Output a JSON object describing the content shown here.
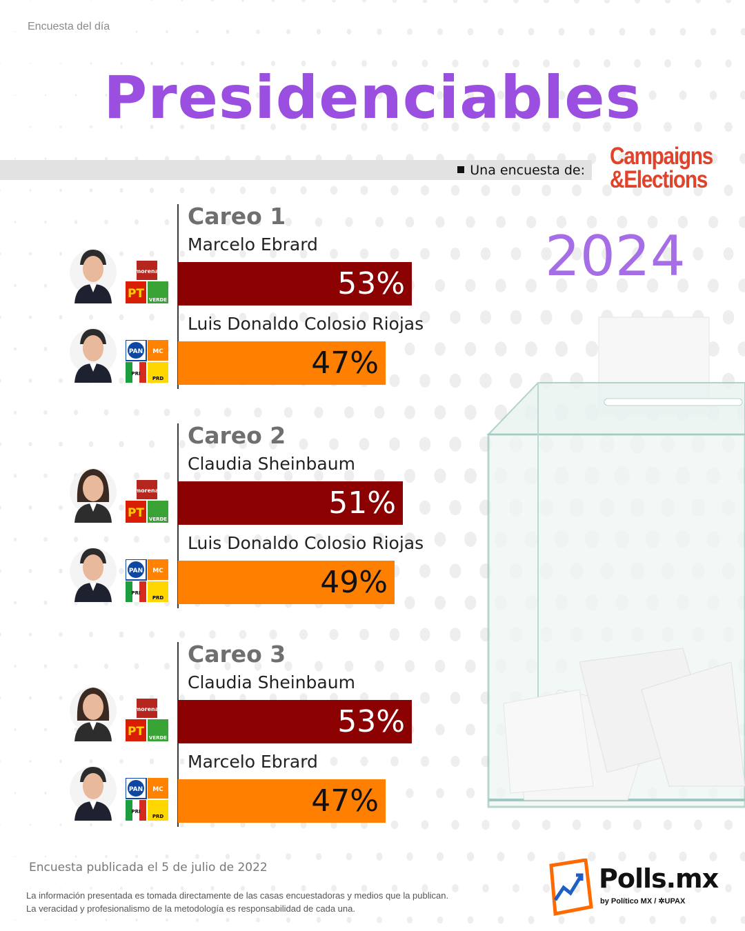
{
  "header": {
    "kicker": "Encuesta del día",
    "title": "Presidenciables",
    "sponsor_label": "Una encuesta de:",
    "sponsor_line1": "Campaigns",
    "sponsor_line2": "&Elections",
    "year": "2024"
  },
  "colors": {
    "title": "#9b4fe0",
    "year": "#a66ee6",
    "coalition_a_bar": "#8b0000",
    "coalition_b_bar": "#ff7f00",
    "sponsor": "#e0432b"
  },
  "chart_data": {
    "type": "bar",
    "orientation": "horizontal",
    "groups": [
      {
        "title": "Careo 1",
        "candidates": [
          {
            "name": "Marcelo Ebrard",
            "value": 53,
            "label": "53%",
            "coalition": "morena-pt-verde"
          },
          {
            "name": "Luis Donaldo Colosio Riojas",
            "value": 47,
            "label": "47%",
            "coalition": "pan-pri-prd-mc"
          }
        ]
      },
      {
        "title": "Careo 2",
        "candidates": [
          {
            "name": "Claudia Sheinbaum",
            "value": 51,
            "label": "51%",
            "coalition": "morena-pt-verde"
          },
          {
            "name": "Luis Donaldo Colosio Riojas",
            "value": 49,
            "label": "49%",
            "coalition": "pan-pri-prd-mc"
          }
        ]
      },
      {
        "title": "Careo 3",
        "candidates": [
          {
            "name": "Claudia Sheinbaum",
            "value": 53,
            "label": "53%",
            "coalition": "morena-pt-verde"
          },
          {
            "name": "Marcelo Ebrard",
            "value": 47,
            "label": "47%",
            "coalition": "pan-pri-prd-mc"
          }
        ]
      }
    ]
  },
  "footer": {
    "published": "Encuesta publicada el 5 de julio de 2022",
    "disclaimer_line1": "La información presentada es tomada directamente de las casas encuestadoras y medios que la publican.",
    "disclaimer_line2": "La veracidad y profesionalismo de la metodología es responsabilidad de cada una.",
    "brand_name": "Polls.mx",
    "brand_sub": "by Político MX  /  ✲UPAX"
  },
  "logos": {
    "coalition_a": [
      "morena",
      "PT",
      "VERDE"
    ],
    "coalition_b": [
      "PAN",
      "MC",
      "PRI",
      "PRD"
    ]
  }
}
